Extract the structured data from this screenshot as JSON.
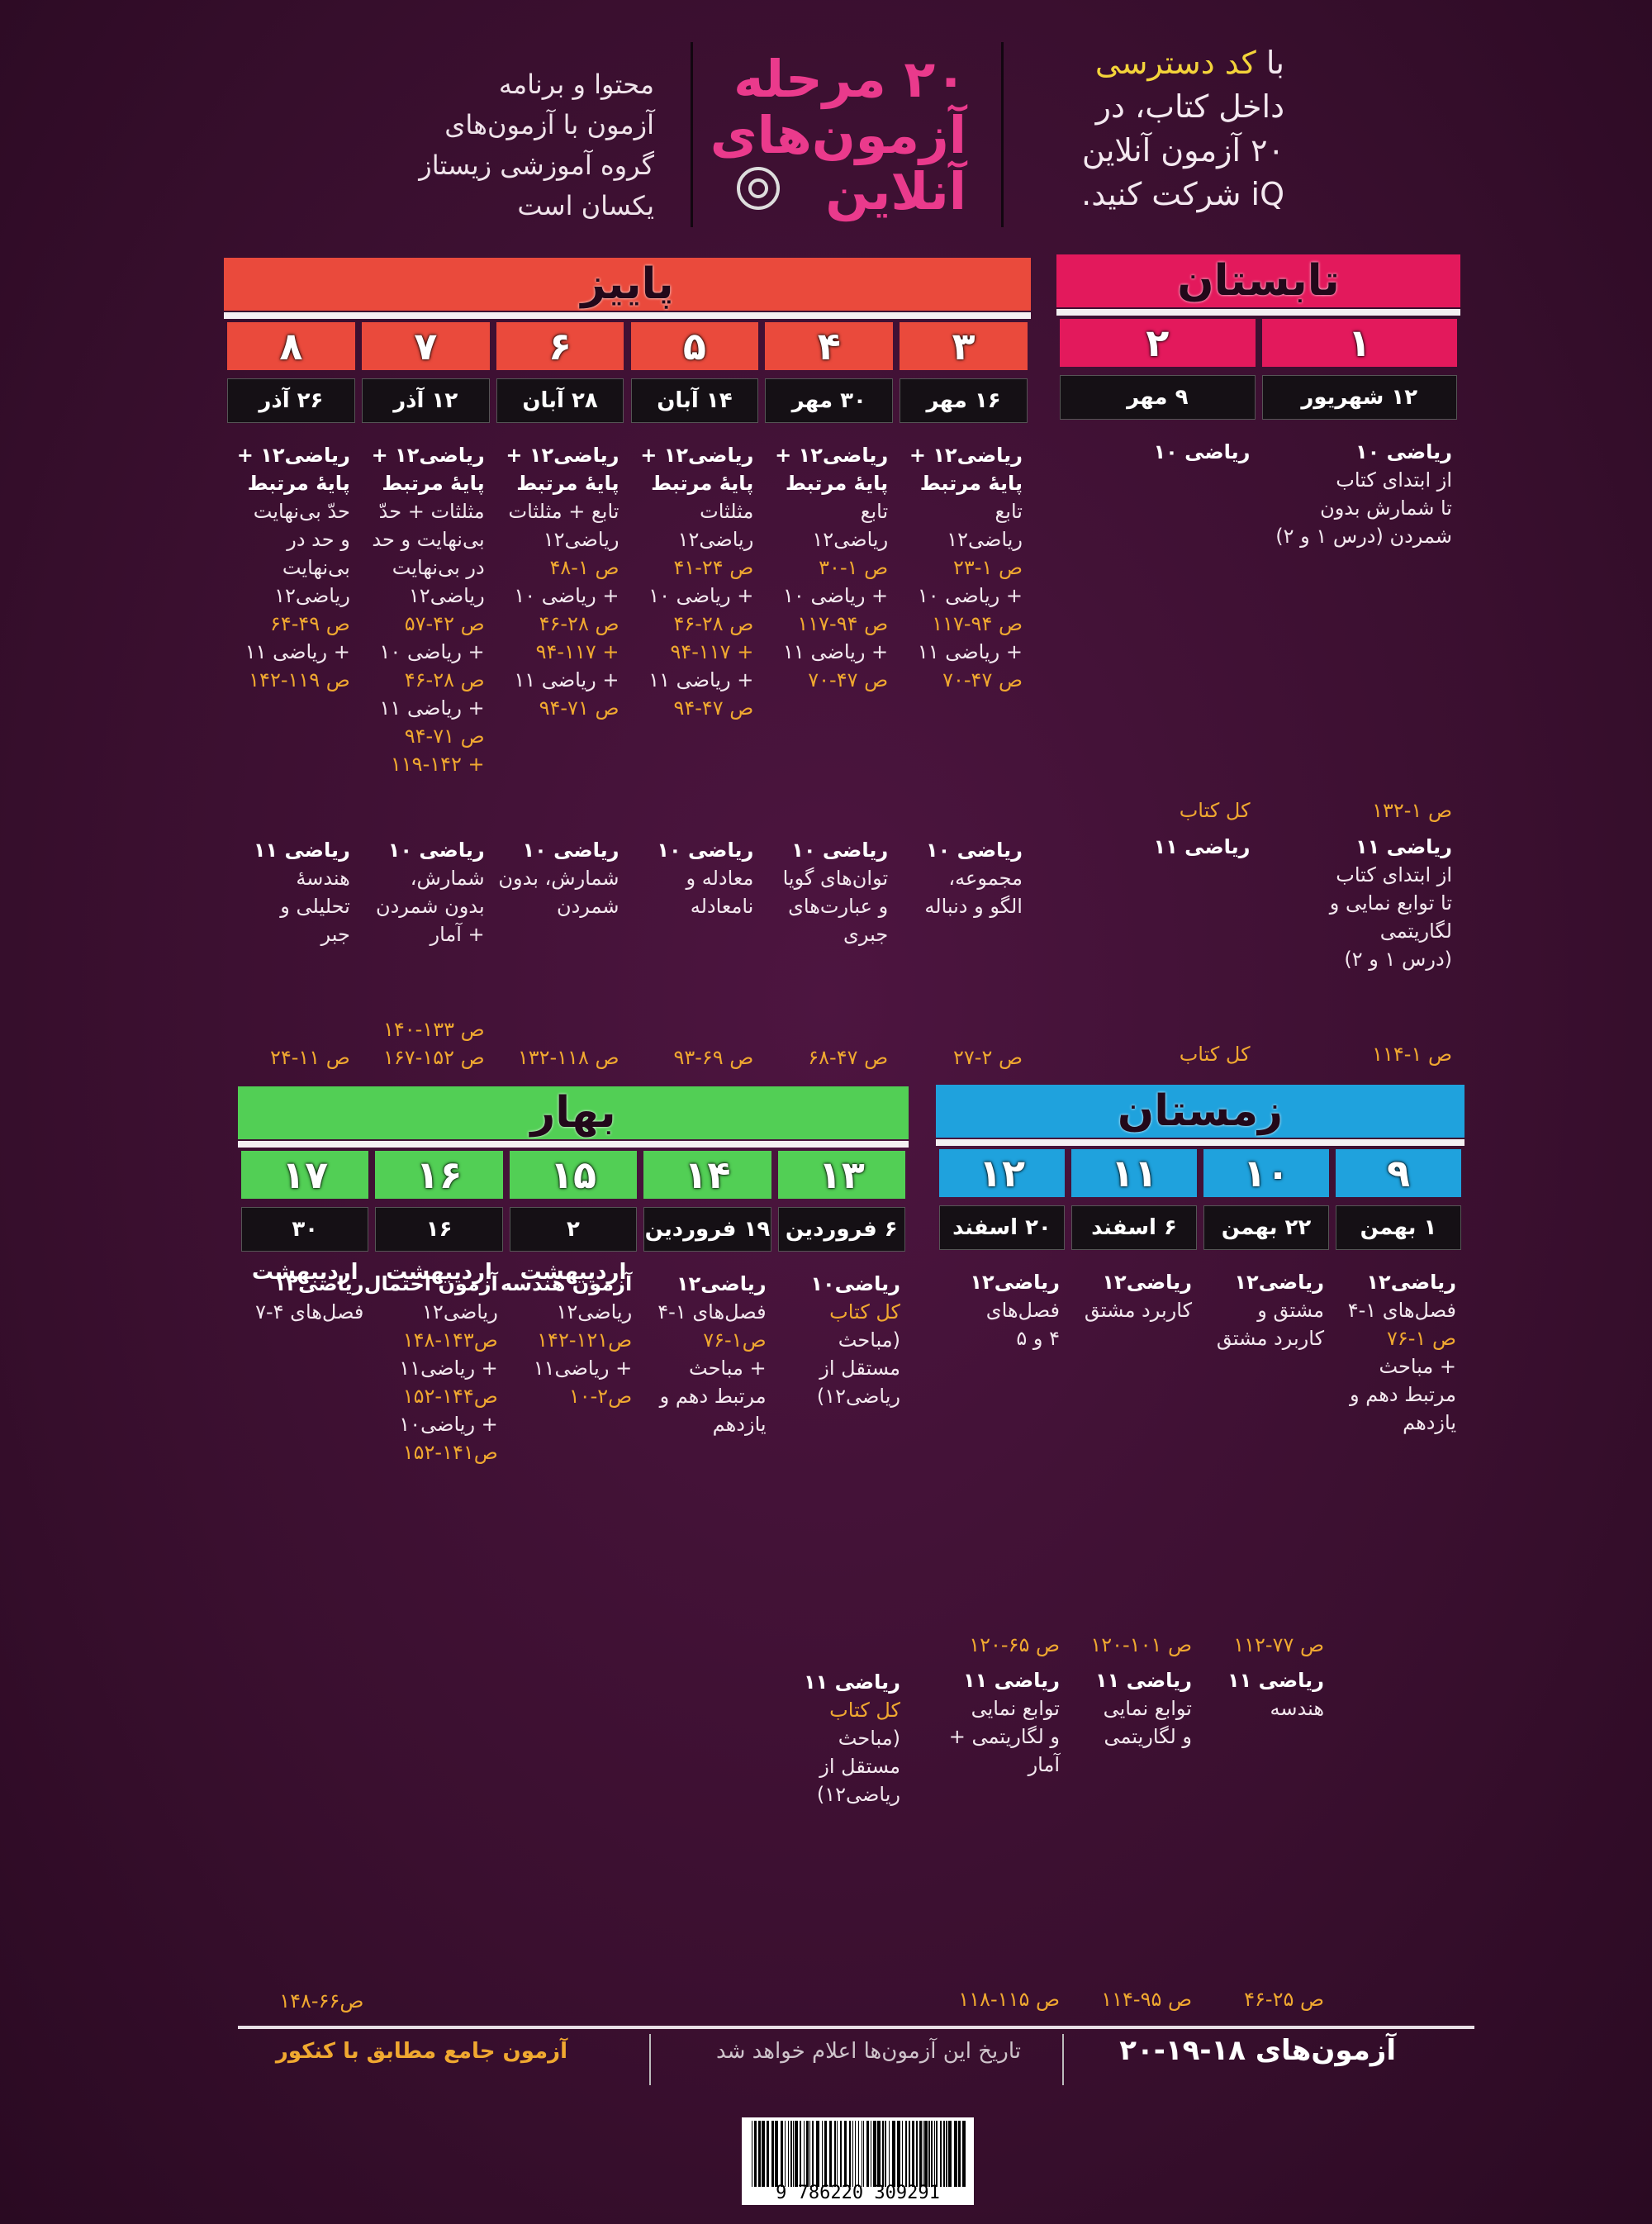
{
  "header": {
    "right": {
      "lead": "با",
      "highlight": "کد دسترسی",
      "lines": [
        "داخل کتاب، در",
        "۲۰ آزمون آنلاین",
        "iQ شرکت کنید."
      ]
    },
    "center": {
      "lines": [
        "۲۰ مرحله",
        "آزمون‌های",
        "آنلاین"
      ]
    },
    "left": {
      "lines": [
        "محتوا و برنامه",
        "آزمون با آزمون‌های",
        "گروه آموزشی زیستاز",
        "یکسان است"
      ]
    }
  },
  "seasons": [
    {
      "name": "تابستان",
      "color": "#e3195c",
      "columns": [
        {
          "number": "۱",
          "date": "۱۲ شهریور",
          "top": [
            {
              "head": "ریاضی ۱۰"
            },
            "از ابتدای کتاب",
            "تا شمارش بدون",
            "شمردن (درس ۱ و ۲)"
          ],
          "top_pages": [
            "ص ۱-۱۳۲"
          ],
          "bottom": [
            {
              "head": "ریاضی ۱۱"
            },
            "از ابتدای کتاب",
            "تا توابع نمایی و",
            "لگاریتمی",
            "(درس ۱ و ۲)"
          ],
          "bottom_pages": [
            "ص ۱-۱۱۴"
          ]
        },
        {
          "number": "۲",
          "date": "۹ مهر",
          "top": [
            {
              "head": "ریاضی ۱۰"
            }
          ],
          "top_pages": [
            "کل کتاب"
          ],
          "bottom": [
            {
              "head": "ریاضی ۱۱"
            }
          ],
          "bottom_pages": [
            "کل کتاب"
          ]
        }
      ]
    },
    {
      "name": "پاییز",
      "color": "#ea4a3c",
      "columns": [
        {
          "number": "۳",
          "date": "۱۶ مهر",
          "top": [
            {
              "head": "ریاضی۱۲ +"
            },
            {
              "head": "پایهٔ مرتبط"
            },
            "تابع",
            "ریاضی۱۲",
            {
              "page": "ص ۱-۲۳"
            },
            "+ ریاضی ۱۰",
            {
              "page": "ص ۹۴-۱۱۷"
            },
            "+ ریاضی ۱۱",
            {
              "page": "ص ۴۷-۷۰"
            }
          ],
          "bottom": [
            {
              "head": "ریاضی ۱۰"
            },
            "مجموعه،",
            "الگو و دنباله"
          ],
          "bottom_pages": [
            "ص ۲-۲۷"
          ]
        },
        {
          "number": "۴",
          "date": "۳۰ مهر",
          "top": [
            {
              "head": "ریاضی۱۲ +"
            },
            {
              "head": "پایهٔ مرتبط"
            },
            "تابع",
            "ریاضی۱۲",
            {
              "page": "ص ۱-۳۰"
            },
            "+ ریاضی ۱۰",
            {
              "page": "ص ۹۴-۱۱۷"
            },
            "+ ریاضی ۱۱",
            {
              "page": "ص ۴۷-۷۰"
            }
          ],
          "bottom": [
            {
              "head": "ریاضی ۱۰"
            },
            "توان‌های گویا",
            "و عبارت‌های",
            "جبری"
          ],
          "bottom_pages": [
            "ص ۴۷-۶۸"
          ]
        },
        {
          "number": "۵",
          "date": "۱۴ آبان",
          "top": [
            {
              "head": "ریاضی۱۲ +"
            },
            {
              "head": "پایهٔ مرتبط"
            },
            "مثلثات",
            "ریاضی۱۲",
            {
              "page": "ص ۲۴-۴۱"
            },
            "+ ریاضی ۱۰",
            {
              "page": "ص ۲۸-۴۶"
            },
            {
              "page": "+ ۹۴-۱۱۷"
            },
            "+ ریاضی ۱۱",
            {
              "page": "ص ۴۷-۹۴"
            }
          ],
          "bottom": [
            {
              "head": "ریاضی ۱۰"
            },
            "معادله و",
            "نامعادله"
          ],
          "bottom_pages": [
            "ص ۶۹-۹۳"
          ]
        },
        {
          "number": "۶",
          "date": "۲۸ آبان",
          "top": [
            {
              "head": "ریاضی۱۲ +"
            },
            {
              "head": "پایهٔ مرتبط"
            },
            "تابع + مثلثات",
            "ریاضی۱۲",
            {
              "page": "ص ۱-۴۸"
            },
            "+ ریاضی ۱۰",
            {
              "page": "ص ۲۸-۴۶"
            },
            {
              "page": "+ ۹۴-۱۱۷"
            },
            "+ ریاضی ۱۱",
            {
              "page": "ص ۷۱-۹۴"
            }
          ],
          "bottom": [
            {
              "head": "ریاضی ۱۰"
            },
            "شمارش، بدون",
            "شمردن"
          ],
          "bottom_pages": [
            "ص ۱۱۸-۱۳۲"
          ]
        },
        {
          "number": "۷",
          "date": "۱۲ آذر",
          "top": [
            {
              "head": "ریاضی۱۲ +"
            },
            {
              "head": "پایهٔ مرتبط"
            },
            "مثلثات + حدّ",
            "بی‌نهایت و حد",
            "در بی‌نهایت",
            "ریاضی۱۲",
            {
              "page": "ص ۴۲-۵۷"
            },
            "+ ریاضی ۱۰",
            {
              "page": "ص ۲۸-۴۶"
            },
            "+ ریاضی ۱۱",
            {
              "page": "ص ۷۱-۹۴"
            },
            {
              "page": "+ ۱۱۹-۱۴۲"
            }
          ],
          "bottom": [
            {
              "head": "ریاضی ۱۰"
            },
            "شمارش،",
            "بدون شمردن",
            "+ آمار"
          ],
          "bottom_pages": [
            "ص ۱۳۳-۱۴۰",
            "ص ۱۵۲-۱۶۷"
          ]
        },
        {
          "number": "۸",
          "date": "۲۶ آذر",
          "top": [
            {
              "head": "ریاضی۱۲ +"
            },
            {
              "head": "پایهٔ مرتبط"
            },
            "حدّ بی‌نهایت",
            "و حد در",
            "بی‌نهایت",
            "ریاضی۱۲",
            {
              "page": "ص ۴۹-۶۴"
            },
            "+ ریاضی ۱۱",
            {
              "page": "ص ۱۱۹-۱۴۲"
            }
          ],
          "bottom": [
            {
              "head": "ریاضی ۱۱"
            },
            "هندسهٔ",
            "تحلیلی و",
            "جبر"
          ],
          "bottom_pages": [
            "ص ۱۱-۲۴"
          ]
        }
      ]
    },
    {
      "name": "زمستان",
      "color": "#1fa2dd",
      "columns": [
        {
          "number": "۹",
          "date": "۱ بهمن",
          "top": [
            {
              "head": "ریاضی۱۲"
            },
            "فصل‌های ۱-۴",
            {
              "page": "ص ۱-۷۶"
            },
            "+ مباحث",
            "مرتبط دهم و",
            "یازدهم"
          ]
        },
        {
          "number": "۱۰",
          "date": "۲۲ بهمن",
          "top": [
            {
              "head": "ریاضی۱۲"
            },
            "مشتق و",
            "کاربرد مشتق"
          ],
          "top_pages": [
            "ص ۷۷-۱۱۲"
          ],
          "bottom": [
            {
              "head": "ریاضی ۱۱"
            },
            "هندسه"
          ],
          "bottom_pages": [
            "ص ۲۵-۴۶"
          ]
        },
        {
          "number": "۱۱",
          "date": "۶ اسفند",
          "top": [
            {
              "head": "ریاضی۱۲"
            },
            "کاربرد مشتق"
          ],
          "top_pages": [
            "ص ۱۰۱-۱۲۰"
          ],
          "bottom": [
            {
              "head": "ریاضی ۱۱"
            },
            "توابع نمایی",
            "و لگاریتمی"
          ],
          "bottom_pages": [
            "ص ۹۵-۱۱۴"
          ]
        },
        {
          "number": "۱۲",
          "date": "۲۰ اسفند",
          "top": [
            {
              "head": "ریاضی۱۲"
            },
            "فصل‌های",
            "۴ و ۵"
          ],
          "top_pages": [
            "ص ۶۵-۱۲۰"
          ],
          "bottom": [
            {
              "head": "ریاضی ۱۱"
            },
            "توابع نمایی",
            "و لگاریتمی +",
            "آمار"
          ],
          "bottom_pages": [
            "ص ۱۱۵-۱۱۸"
          ]
        }
      ]
    },
    {
      "name": "بهار",
      "color": "#52cf55",
      "columns": [
        {
          "number": "۱۳",
          "date": "۶ فروردین",
          "top": [
            {
              "head": "ریاضی۱۰"
            },
            {
              "page": "کل کتاب"
            },
            "(مباحث",
            "مستقل از",
            "ریاضی۱۲)"
          ],
          "bottom": [
            {
              "head": "ریاضی ۱۱"
            },
            {
              "page": "کل کتاب"
            },
            "(مباحث",
            "مستقل از",
            "ریاضی۱۲)"
          ]
        },
        {
          "number": "۱۴",
          "date": "۱۹ فروردین",
          "top": [
            {
              "head": "ریاضی۱۲"
            },
            "فصل‌های ۱-۴",
            {
              "page": "ص۱-۷۶"
            },
            "+ مباحث",
            "مرتبط دهم و",
            "یازدهم"
          ]
        },
        {
          "number": "۱۵",
          "date": "۲ اردیبهشت",
          "top": [
            {
              "head": "آزمون هندسه"
            },
            "ریاضی۱۲",
            {
              "page": "ص۱۲۱-۱۴۲"
            },
            "+ ریاضی۱۱",
            {
              "page": "ص۲-۱۰"
            }
          ]
        },
        {
          "number": "۱۶",
          "date": "۱۶ اردیبهشت",
          "top": [
            {
              "head": "آزمون احتمال"
            },
            "ریاضی۱۲",
            {
              "page": "ص۱۴۳-۱۴۸"
            },
            "+ ریاضی۱۱",
            {
              "page": "ص۱۴۴-۱۵۲"
            },
            "+ ریاضی۱۰",
            {
              "page": "ص۱۴۱-۱۵۲"
            }
          ]
        },
        {
          "number": "۱۷",
          "date": "۳۰ اردیبهشت",
          "top": [
            {
              "head": "ریاضی۱۲"
            },
            "فصل‌های ۴-۷"
          ],
          "bottom_pages": [
            "ص۶۶-۱۴۸"
          ]
        }
      ]
    }
  ],
  "footer": {
    "title": "آزمون‌های ۱۸-۱۹-۲۰",
    "note": "تاریخ این آزمون‌ها اعلام خواهد شد",
    "final": "آزمون جامع مطابق با کنکور"
  },
  "barcode": {
    "digits": "9 786220 309291"
  }
}
